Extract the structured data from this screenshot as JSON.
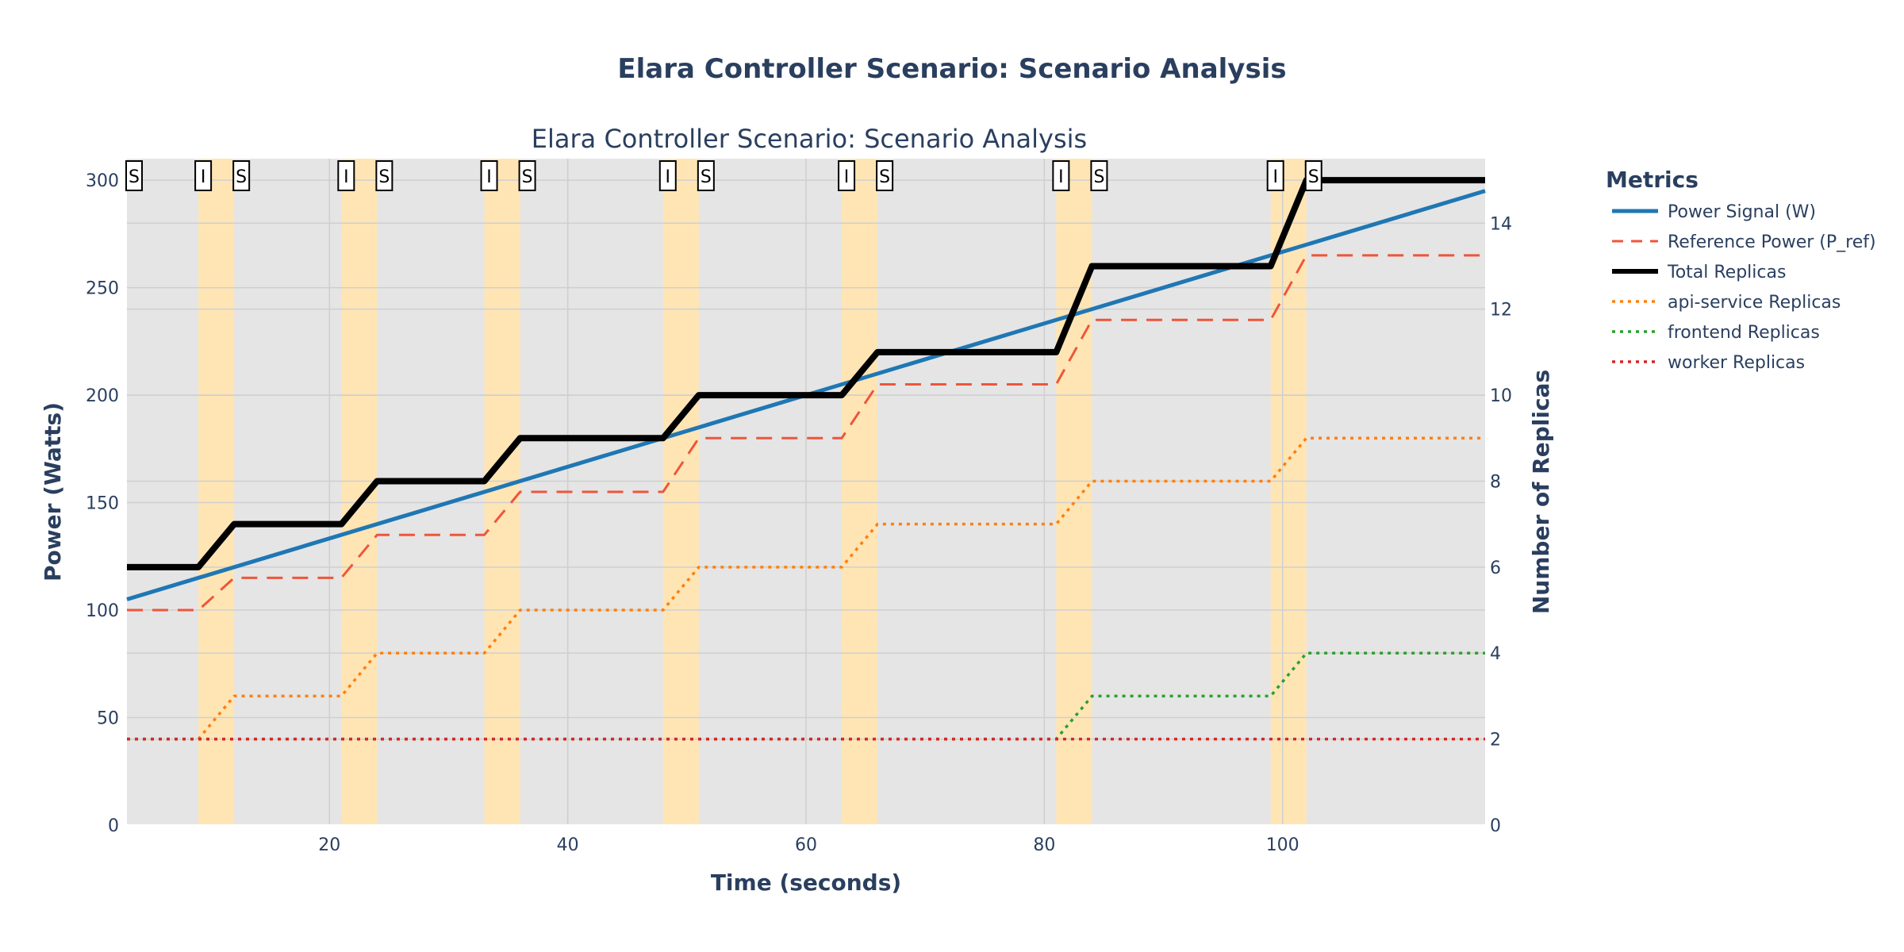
{
  "colors": {
    "plot_bg": "#e5e5e5",
    "grid": "#cfcfcf",
    "band": "#ffe5b4",
    "power": "#1f77b4",
    "reference": "#ef553b",
    "total": "#000000",
    "api_service": "#ff7f0e",
    "frontend": "#2ca02c",
    "worker": "#d62728"
  },
  "chart_data": {
    "type": "line",
    "title": "Elara Controller Scenario: Scenario Analysis",
    "subtitle": "Elara Controller Scenario: Scenario Analysis",
    "xlabel": "Time (seconds)",
    "ylabel": "Power (Watts)",
    "y2label": "Number of Replicas",
    "xlim": [
      3,
      117
    ],
    "ylim": [
      0,
      310
    ],
    "y2lim": [
      0,
      15.5
    ],
    "x_ticks": [
      20,
      40,
      60,
      80,
      100
    ],
    "y_ticks": [
      0,
      50,
      100,
      150,
      200,
      250,
      300
    ],
    "y2_ticks": [
      0,
      2,
      4,
      6,
      8,
      10,
      12,
      14
    ],
    "grid": true,
    "legend_title": "Metrics",
    "legend_position": "right",
    "bands": [
      [
        9,
        12
      ],
      [
        21,
        24
      ],
      [
        33,
        36
      ],
      [
        48,
        51
      ],
      [
        63,
        66
      ],
      [
        81,
        84
      ],
      [
        99,
        102
      ]
    ],
    "markers": [
      {
        "x": 3.6,
        "label": "S"
      },
      {
        "x": 9.4,
        "label": "I"
      },
      {
        "x": 12.6,
        "label": "S"
      },
      {
        "x": 21.4,
        "label": "I"
      },
      {
        "x": 24.6,
        "label": "S"
      },
      {
        "x": 33.4,
        "label": "I"
      },
      {
        "x": 36.6,
        "label": "S"
      },
      {
        "x": 48.4,
        "label": "I"
      },
      {
        "x": 51.6,
        "label": "S"
      },
      {
        "x": 63.4,
        "label": "I"
      },
      {
        "x": 66.6,
        "label": "S"
      },
      {
        "x": 81.4,
        "label": "I"
      },
      {
        "x": 84.6,
        "label": "S"
      },
      {
        "x": 99.4,
        "label": "I"
      },
      {
        "x": 102.6,
        "label": "S"
      }
    ],
    "series": [
      {
        "name": "Power Signal (W)",
        "axis": "y",
        "style": "solid",
        "width": 5,
        "color_key": "power",
        "x": [
          3,
          117
        ],
        "y": [
          105,
          295
        ]
      },
      {
        "name": "Reference Power (P_ref)",
        "axis": "y",
        "style": "dash",
        "width": 3,
        "color_key": "reference",
        "x": [
          3,
          9,
          12,
          21,
          24,
          33,
          36,
          48,
          51,
          63,
          66,
          81,
          84,
          99,
          102,
          117
        ],
        "y": [
          100,
          100,
          115,
          115,
          135,
          135,
          155,
          155,
          180,
          180,
          205,
          205,
          235,
          235,
          265,
          265
        ]
      },
      {
        "name": "Total Replicas",
        "axis": "y2",
        "style": "solid",
        "width": 8,
        "color_key": "total",
        "x": [
          3,
          9,
          12,
          21,
          24,
          33,
          36,
          48,
          51,
          63,
          66,
          81,
          84,
          99,
          102,
          117
        ],
        "y": [
          6,
          6,
          7,
          7,
          8,
          8,
          9,
          9,
          10,
          10,
          11,
          11,
          13,
          13,
          15,
          15
        ]
      },
      {
        "name": "api-service Replicas",
        "axis": "y2",
        "style": "dot",
        "width": 3.5,
        "color_key": "api_service",
        "x": [
          3,
          9,
          12,
          21,
          24,
          33,
          36,
          48,
          51,
          63,
          66,
          81,
          84,
          99,
          102,
          117
        ],
        "y": [
          2,
          2,
          3,
          3,
          4,
          4,
          5,
          5,
          6,
          6,
          7,
          7,
          8,
          8,
          9,
          9
        ]
      },
      {
        "name": "frontend Replicas",
        "axis": "y2",
        "style": "dot",
        "width": 3.5,
        "color_key": "frontend",
        "x": [
          3,
          81,
          84,
          99,
          102,
          117
        ],
        "y": [
          2,
          2,
          3,
          3,
          4,
          4
        ]
      },
      {
        "name": "worker Replicas",
        "axis": "y2",
        "style": "dot",
        "width": 3.5,
        "color_key": "worker",
        "x": [
          3,
          117
        ],
        "y": [
          2,
          2
        ]
      }
    ]
  }
}
